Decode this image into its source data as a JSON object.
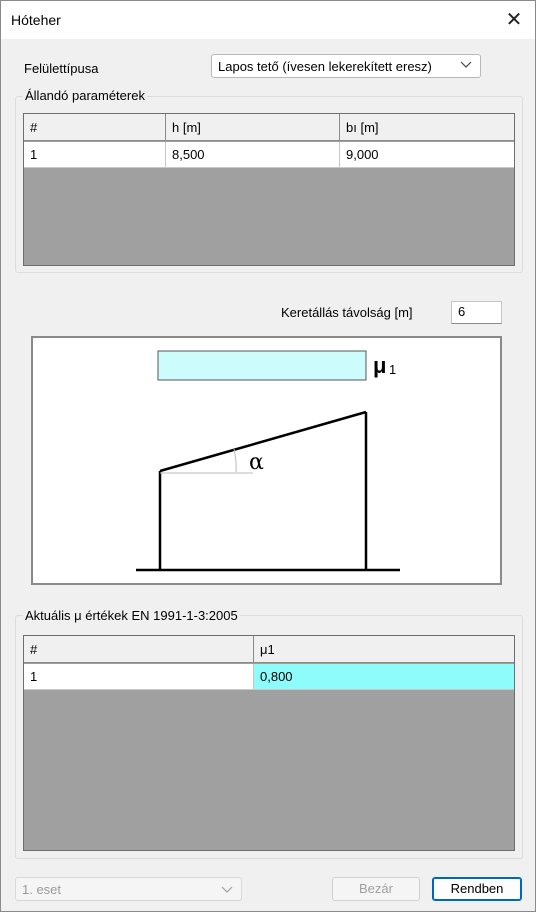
{
  "window": {
    "title": "Hóteher"
  },
  "surface": {
    "label": "Felülettípusa",
    "selected": "Lapos tető (ívesen lekerekített eresz)"
  },
  "fixed_params": {
    "title": "Állandó paraméterek",
    "columns": [
      "#",
      "h [m]",
      "bı [m]"
    ],
    "rows": [
      [
        "1",
        "8,500",
        "9,000"
      ]
    ]
  },
  "frame_spacing": {
    "label": "Keretállás távolság [m]",
    "value": "6"
  },
  "diagram": {
    "mu_label": "μ",
    "mu_sub": "1",
    "alpha_label": "α"
  },
  "mu_values": {
    "title": "Aktuális μ értékek EN 1991-1-3:2005",
    "columns": [
      "#",
      "μ1"
    ],
    "rows": [
      [
        "1",
        "0,800"
      ]
    ]
  },
  "footer": {
    "case_select": "1. eset",
    "close_label": "Bezár",
    "ok_label": "Rendben"
  },
  "colors": {
    "highlight": "#8ffcfc",
    "rect_fill": "#ccfcfc",
    "grid_bg": "#a0a0a0"
  }
}
